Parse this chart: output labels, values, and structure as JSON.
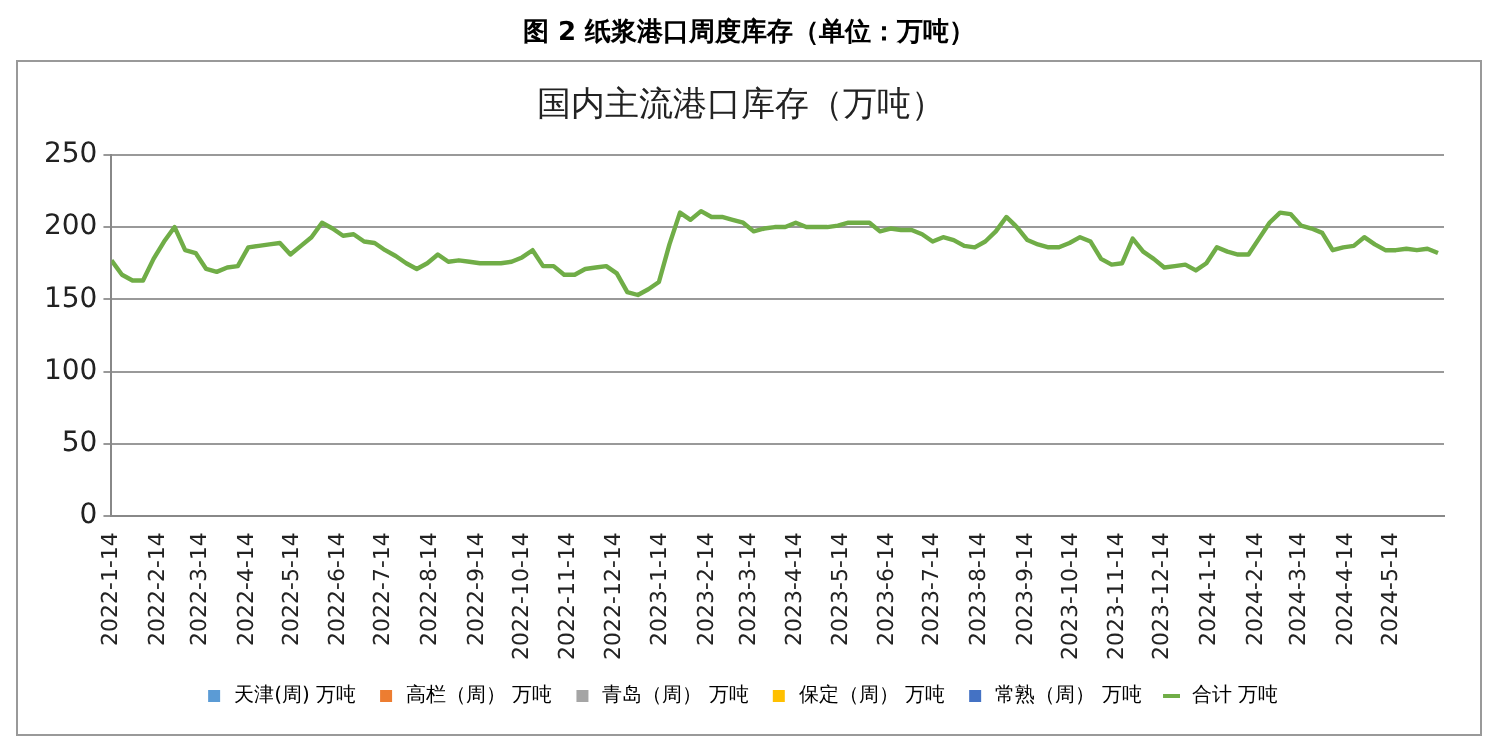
{
  "chart_data": {
    "type": "bar",
    "title": "图 2 纸浆港口周度库存（单位：万吨）",
    "subtitle": "国内主流港口库存（万吨）",
    "x": [
      "2022-01-14",
      "2022-01-21",
      "2022-01-28",
      "2022-02-04",
      "2022-02-11",
      "2022-02-18",
      "2022-02-25",
      "2022-03-04",
      "2022-03-11",
      "2022-03-18",
      "2022-03-25",
      "2022-04-01",
      "2022-04-08",
      "2022-04-15",
      "2022-04-22",
      "2022-04-29",
      "2022-05-06",
      "2022-05-13",
      "2022-05-20",
      "2022-05-27",
      "2022-06-03",
      "2022-06-10",
      "2022-06-17",
      "2022-06-24",
      "2022-07-01",
      "2022-07-08",
      "2022-07-15",
      "2022-07-22",
      "2022-07-29",
      "2022-08-05",
      "2022-08-12",
      "2022-08-19",
      "2022-08-26",
      "2022-09-02",
      "2022-09-09",
      "2022-09-16",
      "2022-09-23",
      "2022-09-30",
      "2022-10-07",
      "2022-10-14",
      "2022-10-21",
      "2022-10-28",
      "2022-11-04",
      "2022-11-11",
      "2022-11-18",
      "2022-11-25",
      "2022-12-02",
      "2022-12-09",
      "2022-12-16",
      "2022-12-23",
      "2022-12-30",
      "2023-01-06",
      "2023-01-13",
      "2023-01-20",
      "2023-01-27",
      "2023-02-03",
      "2023-02-10",
      "2023-02-17",
      "2023-02-24",
      "2023-03-03",
      "2023-03-10",
      "2023-03-17",
      "2023-03-24",
      "2023-03-31",
      "2023-04-07",
      "2023-04-14",
      "2023-04-21",
      "2023-04-28",
      "2023-05-05",
      "2023-05-12",
      "2023-05-19",
      "2023-05-26",
      "2023-06-02",
      "2023-06-09",
      "2023-06-16",
      "2023-06-23",
      "2023-06-30",
      "2023-07-07",
      "2023-07-14",
      "2023-07-21",
      "2023-07-28",
      "2023-08-04",
      "2023-08-11",
      "2023-08-18",
      "2023-08-25",
      "2023-09-01",
      "2023-09-08",
      "2023-09-15",
      "2023-09-22",
      "2023-09-29",
      "2023-10-06",
      "2023-10-13",
      "2023-10-20",
      "2023-10-27",
      "2023-11-03",
      "2023-11-10",
      "2023-11-17",
      "2023-11-24",
      "2023-12-01",
      "2023-12-08",
      "2023-12-15",
      "2023-12-22",
      "2023-12-29",
      "2024-01-05",
      "2024-01-12",
      "2024-01-19",
      "2024-01-26",
      "2024-02-02",
      "2024-02-09",
      "2024-02-16",
      "2024-02-23",
      "2024-03-01",
      "2024-03-08",
      "2024-03-15",
      "2024-03-22",
      "2024-03-29",
      "2024-04-05",
      "2024-04-12",
      "2024-04-19",
      "2024-04-26",
      "2024-05-03",
      "2024-05-10",
      "2024-05-17",
      "2024-05-24",
      "2024-05-31",
      "2024-06-07",
      "2024-06-14"
    ],
    "series": [
      {
        "name": "天津(周) 万吨",
        "color": "#5b9bd5",
        "values": [
          null,
          null,
          null,
          null,
          null,
          null,
          null,
          null,
          null,
          null,
          null,
          null,
          null,
          null,
          null,
          null,
          null,
          null,
          null,
          null,
          null,
          null,
          null,
          null,
          null,
          null,
          null,
          null,
          null,
          null,
          null,
          null,
          null,
          null,
          null,
          null,
          null,
          null,
          null,
          null,
          null,
          null,
          null,
          null,
          null,
          null,
          null,
          null,
          null,
          null,
          null,
          null,
          null,
          null,
          null,
          null,
          null,
          null,
          null,
          null,
          null,
          null,
          null,
          null,
          null,
          null,
          null,
          null,
          null,
          null,
          null,
          null,
          null,
          null,
          null,
          null,
          null,
          null,
          null,
          null,
          null,
          null,
          null,
          null,
          null,
          null,
          null,
          null,
          null,
          null,
          null,
          null,
          null,
          null,
          null,
          null,
          null,
          null,
          null,
          null,
          null,
          null,
          null,
          null,
          null,
          null,
          null,
          null,
          null,
          null,
          null,
          null,
          null,
          null,
          null,
          null,
          null,
          null,
          null,
          null,
          null,
          null,
          null,
          null,
          null,
          null,
          null
        ]
      },
      {
        "name": "高栏（周） 万吨",
        "color": "#ed7d31",
        "values": [
          null,
          null,
          null,
          null,
          null,
          null,
          null,
          null,
          null,
          null,
          null,
          null,
          null,
          null,
          null,
          null,
          null,
          null,
          null,
          null,
          null,
          null,
          null,
          null,
          null,
          null,
          null,
          null,
          null,
          null,
          null,
          null,
          null,
          null,
          null,
          null,
          null,
          null,
          null,
          null,
          null,
          null,
          null,
          null,
          null,
          null,
          null,
          null,
          null,
          null,
          null,
          null,
          null,
          null,
          null,
          null,
          null,
          null,
          null,
          null,
          null,
          null,
          null,
          null,
          null,
          null,
          null,
          null,
          null,
          null,
          null,
          null,
          null,
          null,
          null,
          null,
          null,
          null,
          null,
          null,
          null,
          null,
          null,
          null,
          null,
          null,
          null,
          null,
          null,
          null,
          null,
          null,
          null,
          null,
          null,
          null,
          null,
          null,
          null,
          null,
          null,
          null,
          null,
          null,
          null,
          null,
          null,
          null,
          null,
          null,
          null,
          null,
          null,
          null,
          null,
          null,
          null,
          null,
          null,
          null,
          null,
          null,
          null,
          null,
          null,
          null,
          null
        ]
      },
      {
        "name": "青岛（周） 万吨",
        "color": "#a5a5a5",
        "values": [
          null,
          null,
          null,
          null,
          null,
          null,
          null,
          null,
          null,
          null,
          null,
          null,
          null,
          null,
          null,
          null,
          null,
          null,
          null,
          null,
          null,
          null,
          null,
          null,
          null,
          null,
          null,
          null,
          null,
          null,
          null,
          null,
          null,
          null,
          null,
          null,
          null,
          null,
          null,
          null,
          null,
          null,
          null,
          null,
          null,
          null,
          null,
          null,
          null,
          null,
          null,
          null,
          null,
          null,
          null,
          null,
          null,
          null,
          null,
          null,
          null,
          null,
          null,
          null,
          null,
          null,
          null,
          null,
          null,
          null,
          null,
          null,
          null,
          null,
          null,
          null,
          null,
          null,
          null,
          null,
          null,
          null,
          null,
          null,
          null,
          null,
          null,
          null,
          null,
          null,
          null,
          null,
          null,
          null,
          null,
          null,
          null,
          null,
          null,
          null,
          null,
          null,
          null,
          null,
          null,
          null,
          null,
          null,
          null,
          null,
          null,
          null,
          null,
          null,
          null,
          null,
          null,
          null,
          null,
          null,
          null,
          null,
          null,
          null,
          null,
          null,
          null
        ]
      },
      {
        "name": "保定（周） 万吨",
        "color": "#ffc000",
        "values": [
          null,
          null,
          null,
          null,
          null,
          null,
          null,
          null,
          null,
          null,
          null,
          null,
          null,
          null,
          null,
          null,
          null,
          null,
          null,
          null,
          null,
          null,
          null,
          null,
          null,
          null,
          null,
          null,
          null,
          null,
          null,
          null,
          null,
          null,
          null,
          null,
          null,
          null,
          null,
          null,
          null,
          null,
          null,
          null,
          null,
          null,
          null,
          null,
          null,
          null,
          null,
          null,
          null,
          null,
          null,
          null,
          null,
          null,
          null,
          null,
          null,
          null,
          null,
          null,
          null,
          null,
          null,
          null,
          null,
          null,
          null,
          null,
          null,
          null,
          null,
          null,
          null,
          null,
          null,
          null,
          null,
          null,
          null,
          null,
          null,
          null,
          null,
          null,
          null,
          null,
          null,
          null,
          null,
          null,
          null,
          null,
          null,
          null,
          null,
          null,
          null,
          null,
          null,
          null,
          null,
          null,
          null,
          null,
          null,
          null,
          null,
          null,
          null,
          null,
          null,
          null,
          null,
          null,
          null,
          null,
          null,
          null,
          null,
          null,
          null,
          null,
          null
        ]
      },
      {
        "name": "常熟（周） 万吨",
        "color": "#4472c4",
        "values": [
          null,
          null,
          null,
          null,
          null,
          null,
          null,
          null,
          null,
          null,
          null,
          null,
          null,
          null,
          null,
          null,
          null,
          null,
          null,
          null,
          null,
          null,
          null,
          null,
          null,
          null,
          null,
          null,
          null,
          null,
          null,
          null,
          null,
          null,
          null,
          null,
          null,
          null,
          null,
          null,
          null,
          null,
          null,
          null,
          null,
          null,
          null,
          null,
          null,
          null,
          null,
          null,
          null,
          null,
          null,
          null,
          null,
          null,
          null,
          null,
          null,
          null,
          null,
          null,
          null,
          null,
          null,
          null,
          null,
          null,
          null,
          null,
          null,
          null,
          null,
          null,
          null,
          null,
          null,
          null,
          null,
          null,
          null,
          null,
          null,
          null,
          null,
          null,
          null,
          null,
          null,
          null,
          null,
          null,
          null,
          null,
          null,
          null,
          null,
          null,
          null,
          null,
          null,
          null,
          null,
          null,
          null,
          null,
          null,
          null,
          null,
          null,
          null,
          null,
          null,
          null,
          null,
          null,
          null,
          null,
          null,
          null,
          null,
          null,
          null,
          null,
          null
        ]
      },
      {
        "name": "合计 万吨",
        "type": "line",
        "color": "#70ad47",
        "values": [
          177,
          167,
          163,
          163,
          178,
          190,
          200,
          184,
          182,
          171,
          169,
          172,
          173,
          186,
          187,
          188,
          189,
          181,
          187,
          193,
          203,
          199,
          194,
          195,
          190,
          189,
          184,
          180,
          175,
          171,
          175,
          181,
          176,
          177,
          176,
          175,
          175,
          175,
          176,
          179,
          184,
          173,
          173,
          167,
          167,
          171,
          172,
          173,
          168,
          155,
          153,
          157,
          162,
          188,
          210,
          205,
          211,
          207,
          207,
          205,
          203,
          197,
          199,
          200,
          200,
          203,
          200,
          200,
          200,
          201,
          203,
          203,
          203,
          197,
          199,
          198,
          198,
          195,
          190,
          193,
          191,
          187,
          186,
          190,
          197,
          207,
          200,
          191,
          188,
          186,
          186,
          189,
          193,
          190,
          178,
          174,
          175,
          192,
          183,
          178,
          172,
          173,
          174,
          170,
          175,
          186,
          183,
          181,
          181,
          192,
          203,
          210,
          209,
          201,
          199,
          196,
          184,
          186,
          187,
          193,
          188,
          184,
          184,
          185,
          184,
          185,
          182
        ]
      }
    ],
    "ylim": [
      0,
      250
    ],
    "yticks": [
      0,
      50,
      100,
      150,
      200,
      250
    ],
    "xlim": [
      "2022-01-14",
      "2024-06-18"
    ],
    "xticks": [
      {
        "value": "2022-01-14",
        "label": "2022-1-14"
      },
      {
        "value": "2022-02-14",
        "label": "2022-2-14"
      },
      {
        "value": "2022-03-14",
        "label": "2022-3-14"
      },
      {
        "value": "2022-04-14",
        "label": "2022-4-14"
      },
      {
        "value": "2022-05-14",
        "label": "2022-5-14"
      },
      {
        "value": "2022-06-14",
        "label": "2022-6-14"
      },
      {
        "value": "2022-07-14",
        "label": "2022-7-14"
      },
      {
        "value": "2022-08-14",
        "label": "2022-8-14"
      },
      {
        "value": "2022-09-14",
        "label": "2022-9-14"
      },
      {
        "value": "2022-10-14",
        "label": "2022-10-14"
      },
      {
        "value": "2022-11-14",
        "label": "2022-11-14"
      },
      {
        "value": "2022-12-14",
        "label": "2022-12-14"
      },
      {
        "value": "2023-01-14",
        "label": "2023-1-14"
      },
      {
        "value": "2023-02-14",
        "label": "2023-2-14"
      },
      {
        "value": "2023-03-14",
        "label": "2023-3-14"
      },
      {
        "value": "2023-04-14",
        "label": "2023-4-14"
      },
      {
        "value": "2023-05-14",
        "label": "2023-5-14"
      },
      {
        "value": "2023-06-14",
        "label": "2023-6-14"
      },
      {
        "value": "2023-07-14",
        "label": "2023-7-14"
      },
      {
        "value": "2023-08-14",
        "label": "2023-8-14"
      },
      {
        "value": "2023-09-14",
        "label": "2023-9-14"
      },
      {
        "value": "2023-10-14",
        "label": "2023-10-14"
      },
      {
        "value": "2023-11-14",
        "label": "2023-11-14"
      },
      {
        "value": "2023-12-14",
        "label": "2023-12-14"
      },
      {
        "value": "2024-01-14",
        "label": "2024-1-14"
      },
      {
        "value": "2024-02-14",
        "label": "2024-2-14"
      },
      {
        "value": "2024-03-14",
        "label": "2024-3-14"
      },
      {
        "value": "2024-04-14",
        "label": "2024-4-14"
      },
      {
        "value": "2024-05-14",
        "label": "2024-5-14"
      }
    ],
    "grid": "y",
    "legend": "bottom",
    "marker": "none"
  }
}
